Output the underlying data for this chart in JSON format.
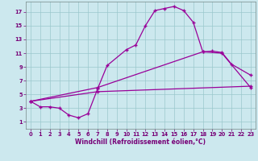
{
  "xlabel": "Windchill (Refroidissement éolien,°C)",
  "bg_color": "#cce8ee",
  "grid_color": "#9ac8cc",
  "line_color": "#990099",
  "xlim": [
    -0.5,
    23.5
  ],
  "ylim": [
    0,
    18.5
  ],
  "xticks": [
    0,
    1,
    2,
    3,
    4,
    5,
    6,
    7,
    8,
    9,
    10,
    11,
    12,
    13,
    14,
    15,
    16,
    17,
    18,
    19,
    20,
    21,
    22,
    23
  ],
  "yticks": [
    1,
    3,
    5,
    7,
    9,
    11,
    13,
    15,
    17
  ],
  "curve1_x": [
    0,
    1,
    2,
    3,
    4,
    5,
    6,
    7,
    8,
    10,
    11,
    12,
    13,
    14,
    15,
    16,
    17,
    18,
    19,
    20,
    21,
    23
  ],
  "curve1_y": [
    4.0,
    3.2,
    3.2,
    3.0,
    2.0,
    1.6,
    2.2,
    5.8,
    9.2,
    11.5,
    12.2,
    15.0,
    17.2,
    17.5,
    17.8,
    17.2,
    15.5,
    11.2,
    11.3,
    11.1,
    9.4,
    7.8
  ],
  "curve2_x": [
    0,
    7,
    18,
    20,
    23
  ],
  "curve2_y": [
    4.0,
    6.0,
    11.2,
    11.0,
    6.0
  ],
  "curve3_x": [
    0,
    7,
    23
  ],
  "curve3_y": [
    4.0,
    5.4,
    6.2
  ],
  "xlabel_fontsize": 5.5,
  "tick_fontsize": 4.8
}
